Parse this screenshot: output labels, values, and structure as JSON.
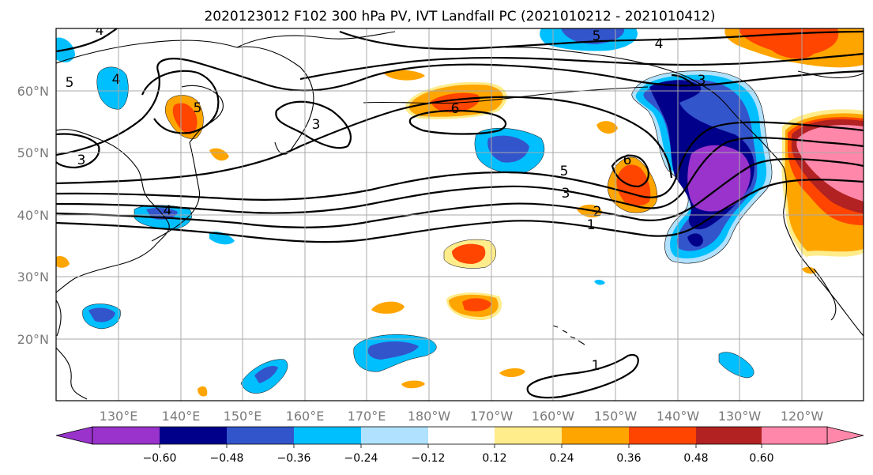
{
  "title": "2020123012 F102 300 hPa PV, IVT Landfall PC (2021010212 - 2021010412)",
  "map": {
    "lon_labels": [
      "130°E",
      "140°E",
      "150°E",
      "160°E",
      "170°E",
      "180°W",
      "170°W",
      "160°W",
      "150°W",
      "140°W",
      "130°W",
      "120°W"
    ],
    "lat_labels": [
      "60°N",
      "50°N",
      "40°N",
      "30°N",
      "20°N"
    ]
  },
  "contour_labels": [
    "4",
    "5",
    "4",
    "3",
    "5",
    "6",
    "5",
    "4",
    "3",
    "3",
    "4",
    "5",
    "3",
    "2",
    "1",
    "6",
    "1"
  ],
  "colorbar": {
    "tick_labels": [
      "−0.60",
      "−0.48",
      "−0.36",
      "−0.24",
      "−0.12",
      "0.12",
      "0.24",
      "0.36",
      "0.48",
      "0.60"
    ],
    "colors": [
      "#9933cc",
      "#00008b",
      "#3355cc",
      "#00bfff",
      "#b0e2ff",
      "#ffffff",
      "#ffec8b",
      "#ffa500",
      "#ff4500",
      "#b22222",
      "#ff88aa"
    ]
  },
  "fill_colors": {
    "neg_strong": "#9933cc",
    "neg_4": "#00008b",
    "neg_3": "#3355cc",
    "neg_2": "#00bfff",
    "neg_1": "#b0e2ff",
    "pos_1": "#ffec8b",
    "pos_2": "#ffa500",
    "pos_3": "#ff4500",
    "pos_4": "#b22222",
    "pos_strong": "#ff88aa"
  }
}
